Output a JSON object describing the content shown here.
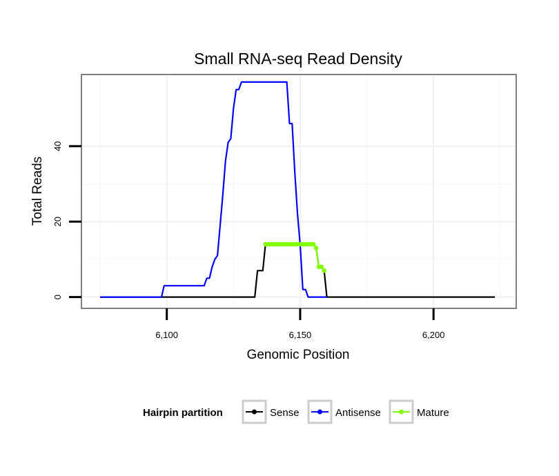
{
  "chart_data": {
    "type": "line",
    "title": "Small RNA-seq Read Density",
    "xlabel": "Genomic Position",
    "ylabel": "Total Reads",
    "xlim": [
      6068,
      6231
    ],
    "ylim": [
      -3,
      59
    ],
    "x_ticks": [
      6100,
      6150,
      6200
    ],
    "x_tick_labels": [
      "6,100",
      "6,150",
      "6,200"
    ],
    "y_ticks": [
      0,
      20,
      40
    ],
    "y_tick_labels": [
      "0",
      "20",
      "40"
    ],
    "grid": true,
    "legend": {
      "title": "Hairpin partition",
      "position": "bottom",
      "entries": [
        "Sense",
        "Antisense",
        "Mature"
      ]
    },
    "series": [
      {
        "name": "Sense",
        "color": "#000000",
        "x": [
          6075,
          6133,
          6134,
          6136,
          6137,
          6155,
          6156,
          6157,
          6158,
          6159,
          6160,
          6223
        ],
        "y": [
          0,
          0,
          7,
          7,
          14,
          14,
          13,
          8,
          8,
          7,
          0,
          0
        ]
      },
      {
        "name": "Antisense",
        "color": "#0000ff",
        "x": [
          6075,
          6098,
          6099,
          6114,
          6115,
          6116,
          6117,
          6118,
          6119,
          6120,
          6121,
          6122,
          6123,
          6124,
          6125,
          6126,
          6127,
          6128,
          6129,
          6130,
          6131,
          6139,
          6140,
          6141,
          6145,
          6146,
          6147,
          6148,
          6149,
          6150,
          6151,
          6152,
          6153,
          6160
        ],
        "y": [
          0,
          0,
          3,
          3,
          5,
          5,
          8,
          10,
          11,
          19,
          27,
          36,
          41,
          42,
          50,
          55,
          55,
          57,
          57,
          57,
          57,
          57,
          57,
          57,
          57,
          46,
          46,
          33,
          22,
          14,
          2,
          2,
          0,
          0
        ]
      },
      {
        "name": "Mature",
        "color": "#80ff00",
        "x": [
          6137,
          6138,
          6139,
          6140,
          6141,
          6142,
          6143,
          6144,
          6145,
          6146,
          6147,
          6148,
          6149,
          6150,
          6151,
          6152,
          6153,
          6154,
          6155,
          6156,
          6157,
          6158,
          6159
        ],
        "y": [
          14,
          14,
          14,
          14,
          14,
          14,
          14,
          14,
          14,
          14,
          14,
          14,
          14,
          14,
          14,
          14,
          14,
          14,
          14,
          13,
          8,
          8,
          7
        ]
      }
    ]
  }
}
